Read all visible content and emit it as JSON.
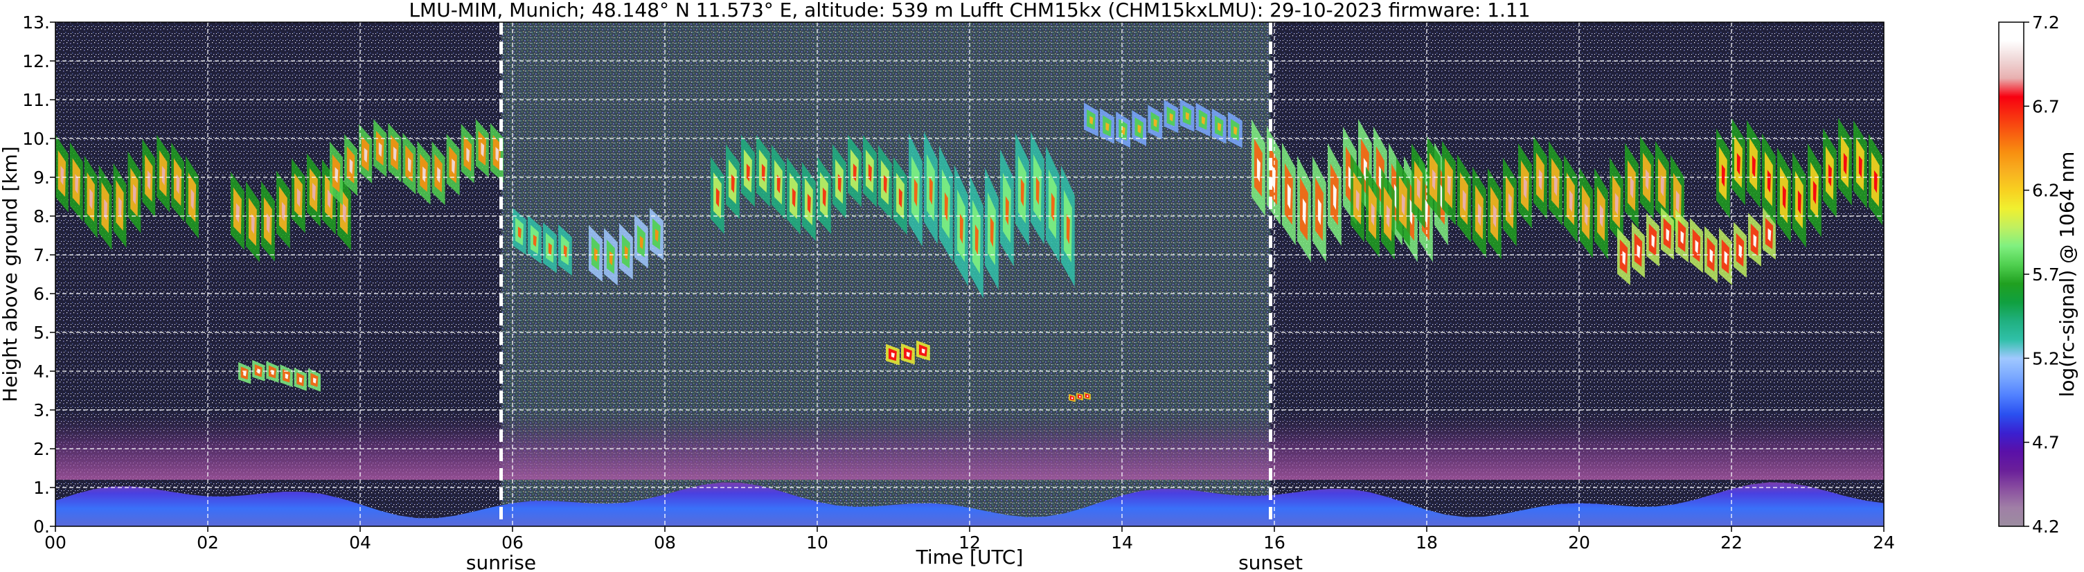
{
  "chart_data": {
    "type": "heatmap",
    "title": "LMU-MIM, Munich; 48.148° N 11.573° E, altitude: 539 m    Lufft CHM15kx (CHM15kxLMU): 29-10-2023    firmware: 1.11",
    "xlabel": "Time [UTC]",
    "ylabel": "Height above ground [km]",
    "xlim": [
      0,
      24
    ],
    "ylim": [
      0,
      13
    ],
    "x_ticks": [
      "00",
      "02",
      "04",
      "06",
      "08",
      "10",
      "12",
      "14",
      "16",
      "18",
      "20",
      "22",
      "24"
    ],
    "y_ticks": [
      "0.",
      "1.",
      "2.",
      "3.",
      "4.",
      "5.",
      "6.",
      "7.",
      "8.",
      "9.",
      "10.",
      "11.",
      "12.",
      "13."
    ],
    "grid": true,
    "colorbar": {
      "label": "log(rc-signal) @ 1064 nm",
      "range": [
        4.2,
        7.2
      ],
      "ticks": [
        "4.2",
        "4.7",
        "5.2",
        "5.7",
        "6.2",
        "6.7",
        "7.2"
      ],
      "colors": [
        "#9c8da0",
        "#a07fa6",
        "#8a4fa0",
        "#6a1f9a",
        "#5a10a8",
        "#3a20d0",
        "#2a50f0",
        "#5080ff",
        "#7aa8ff",
        "#a0c8ff",
        "#30c0a8",
        "#20b080",
        "#10a040",
        "#20a020",
        "#50d050",
        "#80f080",
        "#c0f060",
        "#f0f030",
        "#f8d020",
        "#f8b020",
        "#f89010",
        "#f86010",
        "#f83010",
        "#f80010",
        "#e8b0b0",
        "#f0d8d8",
        "#ffffff",
        "#ffffff"
      ]
    },
    "markers": [
      {
        "x": 5.85,
        "label": "sunrise"
      },
      {
        "x": 15.95,
        "label": "sunset"
      }
    ],
    "cloud_layers": [
      {
        "t_start": 0.0,
        "t_end": 1.9,
        "h_base": 6.5,
        "h_top": 10.5,
        "intensity": 6.6
      },
      {
        "t_start": 2.3,
        "t_end": 3.9,
        "h_base": 6.2,
        "h_top": 10.0,
        "intensity": 6.6
      },
      {
        "t_start": 3.6,
        "t_end": 5.9,
        "h_base": 7.8,
        "h_top": 10.8,
        "intensity": 6.7
      },
      {
        "t_start": 2.4,
        "t_end": 3.5,
        "h_base": 3.3,
        "h_top": 4.4,
        "intensity": 6.8
      },
      {
        "t_start": 6.0,
        "t_end": 6.8,
        "h_base": 6.1,
        "h_top": 8.5,
        "intensity": 6.2
      },
      {
        "t_start": 7.0,
        "t_end": 8.0,
        "h_base": 5.8,
        "h_top": 8.5,
        "intensity": 6.1
      },
      {
        "t_start": 8.6,
        "t_end": 11.2,
        "h_base": 6.8,
        "h_top": 10.5,
        "intensity": 6.3
      },
      {
        "t_start": 11.2,
        "t_end": 13.4,
        "h_base": 5.0,
        "h_top": 10.8,
        "intensity": 6.2
      },
      {
        "t_start": 13.5,
        "t_end": 15.6,
        "h_base": 9.5,
        "h_top": 11.2,
        "intensity": 6.0
      },
      {
        "t_start": 10.9,
        "t_end": 11.5,
        "h_base": 4.0,
        "h_top": 5.0,
        "intensity": 7.0
      },
      {
        "t_start": 13.3,
        "t_end": 13.6,
        "h_base": 3.1,
        "h_top": 3.5,
        "intensity": 7.1
      },
      {
        "t_start": 15.7,
        "t_end": 18.3,
        "h_base": 6.0,
        "h_top": 11.0,
        "intensity": 6.8
      },
      {
        "t_start": 17.0,
        "t_end": 21.4,
        "h_base": 6.2,
        "h_top": 10.5,
        "intensity": 6.6
      },
      {
        "t_start": 20.5,
        "t_end": 22.6,
        "h_base": 5.8,
        "h_top": 8.5,
        "intensity": 6.9
      },
      {
        "t_start": 21.8,
        "t_end": 24.0,
        "h_base": 6.5,
        "h_top": 11.0,
        "intensity": 6.5
      }
    ],
    "boundary_layer": {
      "h_base": 0.0,
      "h_top": 1.2,
      "intensity": 4.8
    },
    "aerosol_haze": {
      "h_base": 1.2,
      "h_top": 3.0,
      "intensity": 4.5
    }
  }
}
